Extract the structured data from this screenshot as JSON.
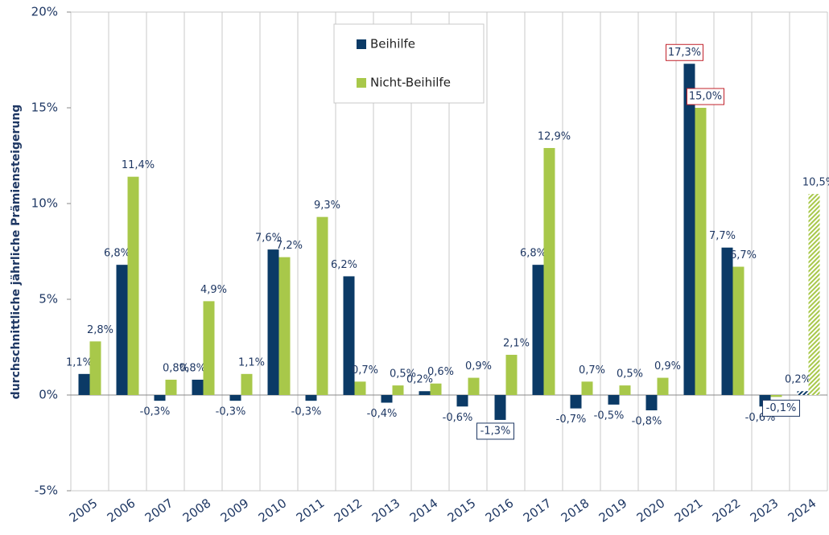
{
  "chart_data": {
    "type": "bar",
    "y_label": "durchschnittliche jährliche Prämiensteigerung",
    "categories": [
      "2005",
      "2006",
      "2007",
      "2008",
      "2009",
      "2010",
      "2011",
      "2012",
      "2013",
      "2014",
      "2015",
      "2016",
      "2017",
      "2018",
      "2019",
      "2020",
      "2021",
      "2022",
      "2023",
      "2024"
    ],
    "series": [
      {
        "name": "Beihilfe",
        "color": "#0b3a66",
        "values": [
          1.1,
          6.8,
          -0.3,
          0.8,
          -0.3,
          7.6,
          -0.3,
          6.2,
          -0.4,
          0.2,
          -0.6,
          -1.3,
          6.8,
          -0.7,
          -0.5,
          -0.8,
          17.3,
          7.7,
          -0.6,
          0.2
        ],
        "value_labels": [
          "1,1%",
          "6,8%",
          "-0,3%",
          "0,8%",
          "-0,3%",
          "7,6%",
          "-0,3%",
          "6,2%",
          "-0,4%",
          "0,2%",
          "-0,6%",
          "-1,3%",
          "6,8%",
          "-0,7%",
          "-0,5%",
          "-0,8%",
          "17,3%",
          "7,7%",
          "-0,6%",
          "0,2%"
        ]
      },
      {
        "name": "Nicht-Beihilfe",
        "color": "#a8c84a",
        "values": [
          2.8,
          11.4,
          0.8,
          4.9,
          1.1,
          7.2,
          9.3,
          0.7,
          0.5,
          0.6,
          0.9,
          2.1,
          12.9,
          0.7,
          0.5,
          0.9,
          15.0,
          6.7,
          -0.1,
          10.5
        ],
        "value_labels": [
          "2,8%",
          "11,4%",
          "0,8%",
          "4,9%",
          "1,1%",
          "7,2%",
          "9,3%",
          "0,7%",
          "0,5%",
          "0,6%",
          "0,9%",
          "2,1%",
          "12,9%",
          "0,7%",
          "0,5%",
          "0,9%",
          "15,0%",
          "6,7%",
          "-0,1%",
          "10,5%"
        ]
      }
    ],
    "ylim": [
      -5,
      20
    ],
    "yticks": [
      {
        "value": -5,
        "label": "-5%"
      },
      {
        "value": 0,
        "label": "0%"
      },
      {
        "value": 5,
        "label": "5%"
      },
      {
        "value": 10,
        "label": "10%"
      },
      {
        "value": 15,
        "label": "15%"
      },
      {
        "value": 20,
        "label": "20%"
      }
    ],
    "legend": "top"
  }
}
